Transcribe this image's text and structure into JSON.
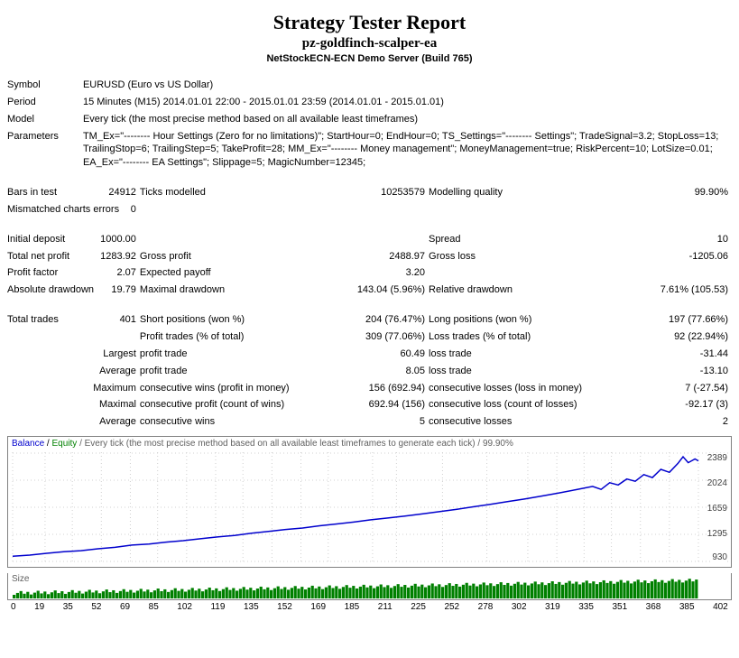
{
  "header": {
    "title": "Strategy Tester Report",
    "subtitle": "pz-goldfinch-scalper-ea",
    "server": "NetStockECN-ECN Demo Server (Build 765)"
  },
  "info": {
    "symbol_label": "Symbol",
    "symbol": "EURUSD (Euro vs US Dollar)",
    "period_label": "Period",
    "period": "15 Minutes (M15) 2014.01.01 22:00 - 2015.01.01 23:59 (2014.01.01 - 2015.01.01)",
    "model_label": "Model",
    "model": "Every tick (the most precise method based on all available least timeframes)",
    "params_label": "Parameters",
    "params": "TM_Ex=\"-------- Hour Settings (Zero for no limitations)\"; StartHour=0; EndHour=0; TS_Settings=\"-------- Settings\"; TradeSignal=3.2; StopLoss=13; TrailingStop=6; TrailingStep=5; TakeProfit=28; MM_Ex=\"-------- Money management\"; MoneyManagement=true; RiskPercent=10; LotSize=0.01; EA_Ex=\"-------- EA Settings\"; Slippage=5; MagicNumber=12345;"
  },
  "stats": {
    "bars_label": "Bars in test",
    "bars": "24912",
    "ticks_label": "Ticks modelled",
    "ticks": "10253579",
    "mq_label": "Modelling quality",
    "mq": "99.90%",
    "mismatch_label": "Mismatched charts errors",
    "mismatch": "0",
    "init_dep_label": "Initial deposit",
    "init_dep": "1000.00",
    "spread_label": "Spread",
    "spread": "10",
    "tnp_label": "Total net profit",
    "tnp": "1283.92",
    "gp_label": "Gross profit",
    "gp": "2488.97",
    "gl_label": "Gross loss",
    "gl": "-1205.06",
    "pf_label": "Profit factor",
    "pf": "2.07",
    "ep_label": "Expected payoff",
    "ep": "3.20",
    "ad_label": "Absolute drawdown",
    "ad": "19.79",
    "md_label": "Maximal drawdown",
    "md": "143.04 (5.96%)",
    "rd_label": "Relative drawdown",
    "rd": "7.61% (105.53)",
    "tt_label": "Total trades",
    "tt": "401",
    "sp_label": "Short positions (won %)",
    "sp": "204 (76.47%)",
    "lp_label": "Long positions (won %)",
    "lp": "197 (77.66%)",
    "pt_label": "Profit trades (% of total)",
    "pt": "309 (77.06%)",
    "lt_label": "Loss trades (% of total)",
    "lt": "92 (22.94%)",
    "largest": "Largest",
    "lpt_label": "profit trade",
    "lpt": "60.49",
    "llt_label": "loss trade",
    "llt": "-31.44",
    "average": "Average",
    "apt": "8.05",
    "alt": "-13.10",
    "maximum": "Maximum",
    "cw_label": "consecutive wins (profit in money)",
    "cw": "156 (692.94)",
    "cl_label": "consecutive losses (loss in money)",
    "cl": "7 (-27.54)",
    "maximal": "Maximal",
    "mcp_label": "consecutive profit (count of wins)",
    "mcp": "692.94 (156)",
    "mcl_label": "consecutive loss (count of losses)",
    "mcl": "-92.17 (3)",
    "acw_label": "consecutive wins",
    "acw": "5",
    "acl_label": "consecutive losses",
    "acl": "2"
  },
  "chart": {
    "head_balance": "Balance",
    "head_equity": "Equity",
    "head_rest": " / Every tick (the most precise method based on all available least timeframes to generate each tick) / 99.90%",
    "y_ticks": [
      "2389",
      "2024",
      "1659",
      "1295",
      "930"
    ],
    "x_ticks": [
      "0",
      "19",
      "35",
      "52",
      "69",
      "85",
      "102",
      "119",
      "135",
      "152",
      "169",
      "185",
      "211",
      "225",
      "252",
      "278",
      "302",
      "319",
      "335",
      "351",
      "368",
      "385",
      "402"
    ],
    "size_label": "Size",
    "balance_color": "#0000cd",
    "equity_color": "#008000",
    "grid_color": "#d0d0d0",
    "bg_color": "#ffffff",
    "ymin": 930,
    "ymax": 2389,
    "balance_points": [
      [
        0,
        1000
      ],
      [
        10,
        1015
      ],
      [
        20,
        1040
      ],
      [
        30,
        1060
      ],
      [
        40,
        1075
      ],
      [
        50,
        1100
      ],
      [
        60,
        1120
      ],
      [
        70,
        1150
      ],
      [
        80,
        1165
      ],
      [
        90,
        1190
      ],
      [
        100,
        1210
      ],
      [
        110,
        1235
      ],
      [
        120,
        1260
      ],
      [
        130,
        1280
      ],
      [
        140,
        1310
      ],
      [
        150,
        1335
      ],
      [
        160,
        1360
      ],
      [
        170,
        1380
      ],
      [
        180,
        1410
      ],
      [
        190,
        1435
      ],
      [
        200,
        1460
      ],
      [
        210,
        1490
      ],
      [
        220,
        1515
      ],
      [
        230,
        1540
      ],
      [
        240,
        1570
      ],
      [
        250,
        1600
      ],
      [
        260,
        1630
      ],
      [
        270,
        1665
      ],
      [
        280,
        1700
      ],
      [
        290,
        1735
      ],
      [
        300,
        1770
      ],
      [
        310,
        1810
      ],
      [
        320,
        1850
      ],
      [
        330,
        1895
      ],
      [
        340,
        1940
      ],
      [
        345,
        1900
      ],
      [
        350,
        1990
      ],
      [
        355,
        1960
      ],
      [
        360,
        2040
      ],
      [
        365,
        2010
      ],
      [
        370,
        2100
      ],
      [
        375,
        2060
      ],
      [
        380,
        2170
      ],
      [
        385,
        2130
      ],
      [
        390,
        2250
      ],
      [
        393,
        2340
      ],
      [
        396,
        2260
      ],
      [
        400,
        2310
      ],
      [
        402,
        2284
      ]
    ],
    "size_bars_count": 200,
    "size_bar_min": 6,
    "size_bar_max": 20
  }
}
